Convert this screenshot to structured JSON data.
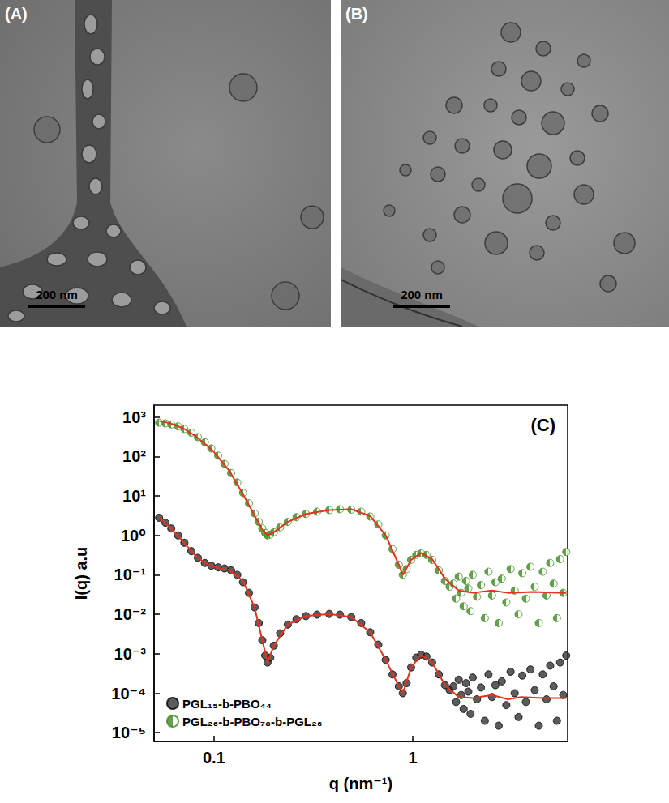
{
  "micrographs": [
    {
      "label": "(A)",
      "scale_bar": "200 nm"
    },
    {
      "label": "(B)",
      "scale_bar": "200 nm"
    }
  ],
  "chart_data": {
    "type": "scatter",
    "panel_label": "(C)",
    "x_label": "q (nm⁻¹)",
    "y_label": "I(q) a.u",
    "log": true,
    "xlim": [
      0.05,
      6
    ],
    "ylim": [
      6e-06,
      2000
    ],
    "xticks": [
      0.1,
      1
    ],
    "yticks": [
      {
        "value": 1e-05,
        "label": "10⁻⁵"
      },
      {
        "value": 0.0001,
        "label": "10⁻⁴"
      },
      {
        "value": 0.001,
        "label": "10⁻³"
      },
      {
        "value": 0.01,
        "label": "10⁻²"
      },
      {
        "value": 0.1,
        "label": "10⁻¹"
      },
      {
        "value": 1,
        "label": "10⁰"
      },
      {
        "value": 10,
        "label": "10¹"
      },
      {
        "value": 100,
        "label": "10²"
      },
      {
        "value": 1000,
        "label": "10³"
      }
    ],
    "legend": "lower left",
    "series": [
      {
        "name": "PGL₁₅-b-PBO₄₄",
        "color": "#333333",
        "marker": "circle",
        "x": [
          0.053,
          0.057,
          0.061,
          0.066,
          0.071,
          0.077,
          0.083,
          0.09,
          0.097,
          0.105,
          0.113,
          0.122,
          0.131,
          0.14,
          0.15,
          0.16,
          0.168,
          0.175,
          0.181,
          0.186,
          0.192,
          0.2,
          0.215,
          0.235,
          0.26,
          0.29,
          0.33,
          0.38,
          0.43,
          0.49,
          0.55,
          0.61,
          0.67,
          0.73,
          0.79,
          0.85,
          0.89,
          0.93,
          0.98,
          1.04,
          1.1,
          1.17,
          1.25,
          1.35,
          1.45,
          1.53,
          1.6,
          1.65,
          1.7,
          1.75,
          1.8,
          1.85,
          1.9,
          1.95,
          2.0,
          2.1,
          2.2,
          2.3,
          2.4,
          2.5,
          2.6,
          2.7,
          2.8,
          2.95,
          3.1,
          3.25,
          3.4,
          3.55,
          3.7,
          3.9,
          4.1,
          4.3,
          4.5,
          4.7,
          4.9,
          5.1,
          5.3,
          5.5,
          5.7,
          5.9
        ],
        "values": [
          2.8,
          2.1,
          1.5,
          1.0,
          0.65,
          0.4,
          0.27,
          0.2,
          0.17,
          0.155,
          0.145,
          0.13,
          0.1,
          0.065,
          0.035,
          0.015,
          0.006,
          0.0022,
          0.0009,
          0.0006,
          0.0008,
          0.0016,
          0.0033,
          0.0055,
          0.0075,
          0.009,
          0.0098,
          0.0102,
          0.0098,
          0.0085,
          0.006,
          0.0035,
          0.0017,
          0.0007,
          0.0003,
          0.00015,
          0.0001,
          0.00018,
          0.00045,
          0.0008,
          0.00095,
          0.00085,
          0.0006,
          0.0003,
          0.00016,
          0.00012,
          0.00015,
          6e-05,
          0.00022,
          9e-05,
          4e-05,
          0.00018,
          0.00011,
          3e-05,
          0.00025,
          7e-05,
          0.00014,
          2e-05,
          0.0003,
          8e-05,
          0.00016,
          1.5e-05,
          0.0002,
          5e-05,
          0.00035,
          0.0001,
          2.5e-05,
          0.00028,
          6e-05,
          0.0004,
          0.00012,
          1.5e-05,
          0.0003,
          7e-05,
          0.0005,
          0.00015,
          2e-05,
          0.0006,
          9e-05,
          0.0009
        ]
      },
      {
        "type": "line",
        "color": "#e5321e",
        "x": [
          0.053,
          0.06,
          0.07,
          0.08,
          0.09,
          0.1,
          0.12,
          0.14,
          0.16,
          0.175,
          0.186,
          0.2,
          0.235,
          0.29,
          0.38,
          0.49,
          0.61,
          0.73,
          0.85,
          0.89,
          0.98,
          1.1,
          1.25,
          1.45,
          1.7,
          2.0,
          2.5,
          3.0,
          3.5,
          4.5,
          5.9
        ],
        "values": [
          2.9,
          1.6,
          0.7,
          0.32,
          0.2,
          0.16,
          0.13,
          0.07,
          0.015,
          0.0022,
          0.0006,
          0.0016,
          0.0055,
          0.009,
          0.0102,
          0.0085,
          0.0035,
          0.0007,
          0.00015,
          0.0001,
          0.00045,
          0.00095,
          0.0006,
          0.00016,
          8e-05,
          7.5e-05,
          9e-05,
          7e-05,
          8e-05,
          7.5e-05,
          7.5e-05
        ]
      },
      {
        "name": "PGL₂₆-b-PBO₇₈-b-PGL₂₆",
        "color": "#3f8a1f",
        "marker": "half-filled circle",
        "x": [
          0.053,
          0.057,
          0.061,
          0.066,
          0.071,
          0.077,
          0.083,
          0.09,
          0.097,
          0.105,
          0.113,
          0.122,
          0.131,
          0.14,
          0.15,
          0.16,
          0.168,
          0.175,
          0.181,
          0.186,
          0.192,
          0.2,
          0.215,
          0.235,
          0.26,
          0.29,
          0.33,
          0.38,
          0.43,
          0.49,
          0.55,
          0.61,
          0.67,
          0.73,
          0.79,
          0.85,
          0.89,
          0.93,
          0.98,
          1.04,
          1.1,
          1.17,
          1.25,
          1.35,
          1.45,
          1.53,
          1.6,
          1.65,
          1.7,
          1.75,
          1.8,
          1.85,
          1.9,
          1.95,
          2.0,
          2.1,
          2.2,
          2.3,
          2.4,
          2.5,
          2.6,
          2.7,
          2.8,
          2.95,
          3.1,
          3.25,
          3.4,
          3.55,
          3.7,
          3.9,
          4.1,
          4.3,
          4.5,
          4.7,
          4.9,
          5.1,
          5.3,
          5.5,
          5.7,
          5.9
        ],
        "values": [
          720,
          690,
          650,
          580,
          500,
          400,
          310,
          230,
          160,
          105,
          65,
          38,
          22,
          12,
          6.5,
          3.6,
          2.2,
          1.5,
          1.15,
          1.0,
          1.05,
          1.2,
          1.6,
          2.2,
          2.9,
          3.5,
          4.0,
          4.4,
          4.6,
          4.5,
          4.0,
          3.0,
          1.9,
          1.0,
          0.45,
          0.18,
          0.1,
          0.14,
          0.24,
          0.32,
          0.35,
          0.32,
          0.24,
          0.13,
          0.07,
          0.05,
          0.06,
          0.025,
          0.09,
          0.035,
          0.016,
          0.07,
          0.045,
          0.012,
          0.1,
          0.028,
          0.055,
          0.008,
          0.12,
          0.03,
          0.065,
          0.006,
          0.08,
          0.02,
          0.14,
          0.04,
          0.01,
          0.11,
          0.025,
          0.16,
          0.05,
          0.006,
          0.12,
          0.03,
          0.2,
          0.06,
          0.008,
          0.25,
          0.035,
          0.38
        ]
      },
      {
        "type": "line",
        "color": "#e5321e",
        "x": [
          0.053,
          0.06,
          0.07,
          0.08,
          0.09,
          0.1,
          0.12,
          0.14,
          0.16,
          0.175,
          0.186,
          0.2,
          0.235,
          0.29,
          0.38,
          0.49,
          0.61,
          0.73,
          0.85,
          0.89,
          0.98,
          1.1,
          1.25,
          1.45,
          1.7,
          2.0,
          2.5,
          3.0,
          4.0,
          5.9
        ],
        "values": [
          800,
          700,
          520,
          340,
          210,
          130,
          42,
          11,
          3.2,
          1.4,
          1.0,
          1.2,
          2.2,
          3.5,
          4.4,
          4.6,
          3.1,
          1.0,
          0.18,
          0.1,
          0.24,
          0.36,
          0.25,
          0.08,
          0.04,
          0.035,
          0.04,
          0.035,
          0.037,
          0.035
        ]
      }
    ]
  }
}
